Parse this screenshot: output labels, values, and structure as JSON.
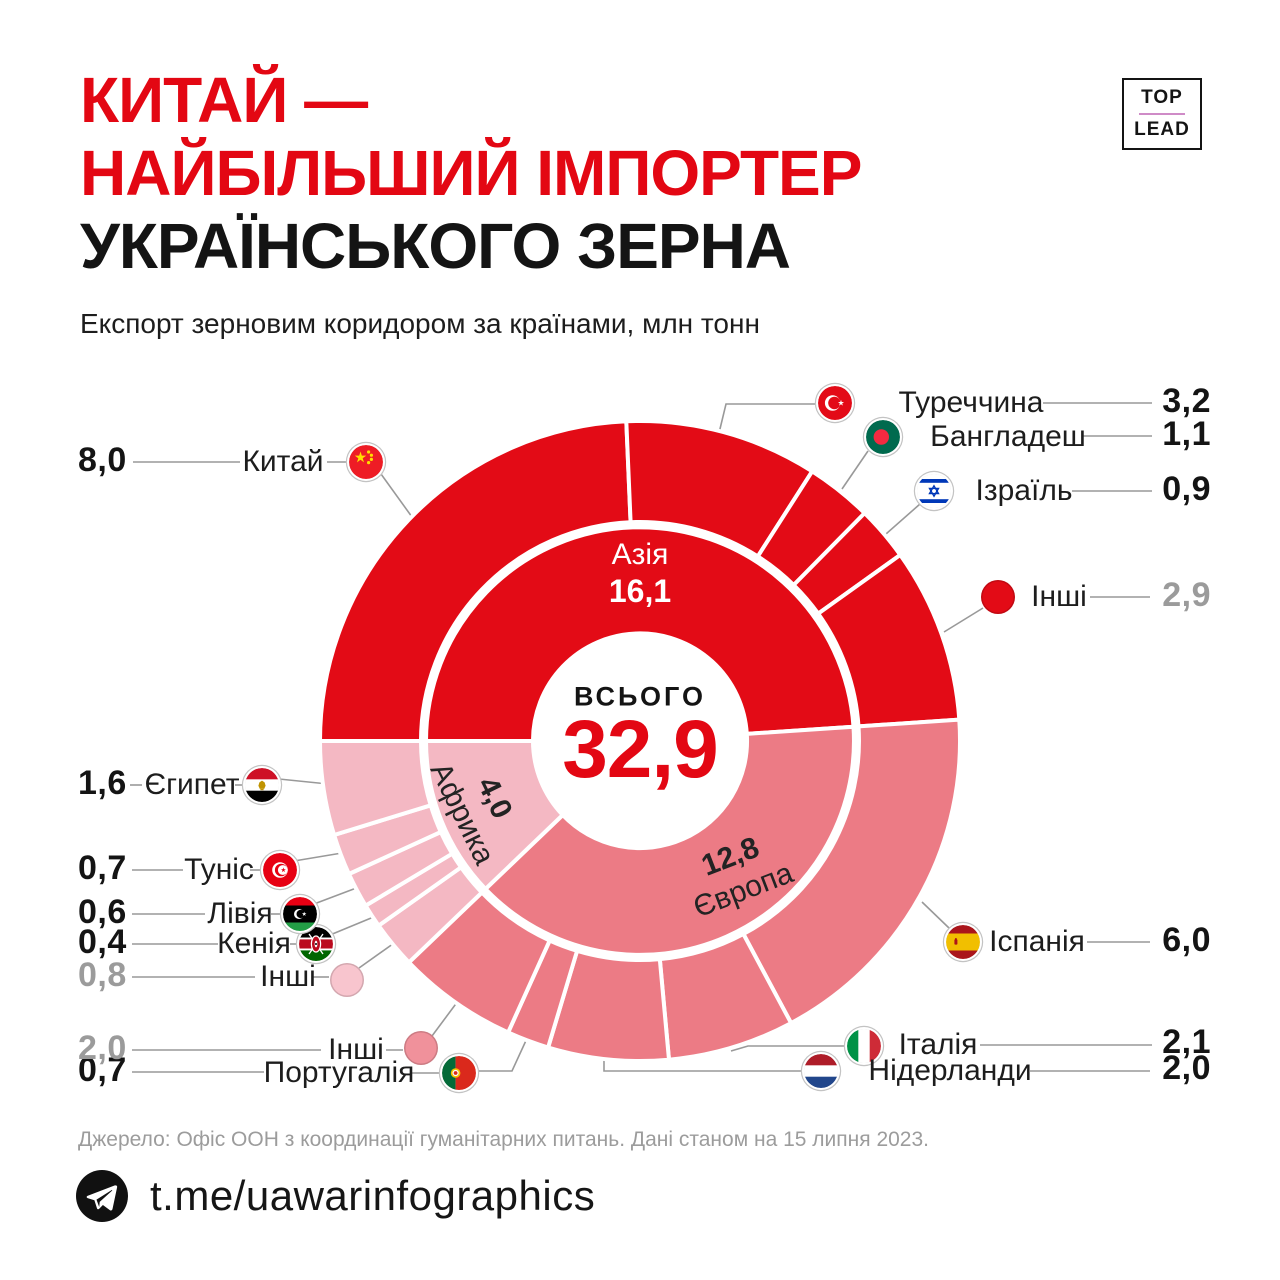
{
  "header": {
    "title_line1": "КИТАЙ —",
    "title_line2": "НАЙБІЛЬШИЙ ІМПОРТЕР",
    "title_line3": "УКРАЇНСЬКОГО ЗЕРНА",
    "subtitle": "Експорт зерновим коридором за країнами, млн тонн",
    "logo": {
      "top": "TOP",
      "lead": "LEAD"
    }
  },
  "palette": {
    "red": "#e30713",
    "europe_pink": "#ec7b85",
    "africa_pink": "#f4b8c3",
    "gray_value": "#9b9b9b",
    "leader_line": "#999999",
    "logo_accent": "#cf8bc7"
  },
  "chart_data": {
    "type": "pie",
    "subtype": "two-ring donut (regions inside, countries outside)",
    "title": "Експорт зерновим коридором за країнами, млн тонн",
    "units": "млн тонн",
    "legend_position": "callouts",
    "start_angle_deg": 270,
    "center": {
      "label": "ВСЬОГО",
      "value": "32,9"
    },
    "regions": [
      {
        "id": "asia",
        "name": "Азія",
        "value": 16.1,
        "display": "16,1",
        "color": "#e30b16",
        "countries": [
          {
            "id": "china",
            "name": "Китай",
            "value": 8.0,
            "display": "8,0",
            "flag": "china"
          },
          {
            "id": "turkey",
            "name": "Туреччина",
            "value": 3.2,
            "display": "3,2",
            "flag": "turkey"
          },
          {
            "id": "bangladesh",
            "name": "Бангладеш",
            "value": 1.1,
            "display": "1,1",
            "flag": "bangladesh"
          },
          {
            "id": "israel",
            "name": "Ізраїль",
            "value": 0.9,
            "display": "0,9",
            "flag": "israel"
          },
          {
            "id": "asia-others",
            "name": "Інші",
            "value": 2.9,
            "display": "2,9",
            "flag": "dot",
            "dot_color": "#e30b16"
          }
        ]
      },
      {
        "id": "europe",
        "name": "Європа",
        "value": 12.8,
        "display": "12,8",
        "color": "#ec7b85",
        "countries": [
          {
            "id": "spain",
            "name": "Іспанія",
            "value": 6.0,
            "display": "6,0",
            "flag": "spain"
          },
          {
            "id": "italy",
            "name": "Італія",
            "value": 2.1,
            "display": "2,1",
            "flag": "italy"
          },
          {
            "id": "netherlands",
            "name": "Нідерланди",
            "value": 2.0,
            "display": "2,0",
            "flag": "netherlands"
          },
          {
            "id": "portugal",
            "name": "Португалія",
            "value": 0.7,
            "display": "0,7",
            "flag": "portugal"
          },
          {
            "id": "europe-others",
            "name": "Інші",
            "value": 2.0,
            "display": "2,0",
            "flag": "dot",
            "dot_color": "#f0919b"
          }
        ]
      },
      {
        "id": "africa",
        "name": "Африка",
        "value": 4.0,
        "display": "4,0",
        "color": "#f4b8c3",
        "countries": [
          {
            "id": "africa-others",
            "name": "Інші",
            "value": 0.8,
            "display": "0,8",
            "flag": "dot",
            "dot_color": "#f8c5ce"
          },
          {
            "id": "kenya",
            "name": "Кенія",
            "value": 0.4,
            "display": "0,4",
            "flag": "kenya"
          },
          {
            "id": "libya",
            "name": "Лівія",
            "value": 0.6,
            "display": "0,6",
            "flag": "libya"
          },
          {
            "id": "tunisia",
            "name": "Туніс",
            "value": 0.7,
            "display": "0,7",
            "flag": "tunisia"
          },
          {
            "id": "egypt",
            "name": "Єгипет",
            "value": 1.6,
            "display": "1,6",
            "flag": "egypt"
          }
        ]
      }
    ]
  },
  "source": "Джерело: Офіс ООН з координації гуманітарних питань. Дані станом на 15 липня 2023.",
  "footer": {
    "handle": "t.me/uawarinfographics"
  }
}
